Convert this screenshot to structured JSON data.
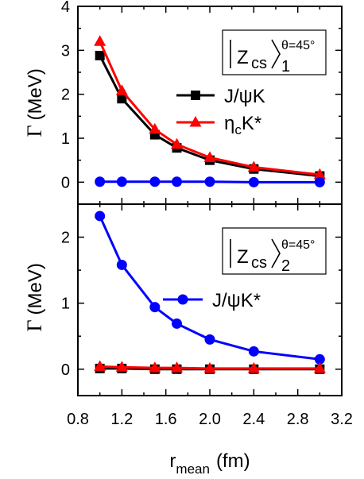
{
  "chart_data": [
    {
      "type": "line",
      "label_title": "Z",
      "label_sub": "cs",
      "label_index": "1",
      "label_angle": "θ=45°",
      "ylabel_symbol": "Γ",
      "ylabel_unit": "(MeV)",
      "xlim": [
        0.8,
        3.2
      ],
      "ylim": [
        -0.5,
        4
      ],
      "yticks": [
        0,
        1,
        2,
        3,
        4
      ],
      "x": [
        1.0,
        1.2,
        1.5,
        1.7,
        2.0,
        2.4,
        3.0
      ],
      "series": [
        {
          "name": "J/ψK",
          "name_parts": [
            "J/ψK",
            "",
            ""
          ],
          "color": "#000000",
          "marker": "square",
          "legend": true,
          "values": [
            2.88,
            1.9,
            1.08,
            0.78,
            0.5,
            0.3,
            0.14
          ]
        },
        {
          "name": "ηcK*",
          "name_parts": [
            "η",
            "c",
            "K*"
          ],
          "color": "#ff0000",
          "marker": "triangle",
          "legend": true,
          "values": [
            3.2,
            2.08,
            1.2,
            0.86,
            0.56,
            0.34,
            0.17
          ]
        },
        {
          "name": "",
          "name_parts": [
            "",
            "",
            ""
          ],
          "color": "#0000ff",
          "marker": "circle",
          "legend": false,
          "values": [
            0.01,
            0.01,
            0.01,
            0.01,
            0.01,
            0.0,
            0.0
          ]
        }
      ]
    },
    {
      "type": "line",
      "label_title": "Z",
      "label_sub": "cs",
      "label_index": "2",
      "label_angle": "θ=45°",
      "ylabel_symbol": "Γ",
      "ylabel_unit": "(MeV)",
      "xlim": [
        0.8,
        3.2
      ],
      "ylim": [
        -0.4,
        2.5
      ],
      "yticks": [
        0,
        1,
        2
      ],
      "xticks": [
        0.8,
        1.2,
        1.6,
        2.0,
        2.4,
        2.8,
        3.2
      ],
      "xtick_labels": [
        "0.8",
        "1.2",
        "1.6",
        "2.0",
        "2.4",
        "2.8",
        "3.2"
      ],
      "xlabel_main": "r",
      "xlabel_sub": "mean",
      "xlabel_unit": "(fm)",
      "x": [
        1.0,
        1.2,
        1.5,
        1.7,
        2.0,
        2.4,
        3.0
      ],
      "series": [
        {
          "name": "J/ψK*",
          "name_parts": [
            "J/ψK*",
            "",
            ""
          ],
          "color": "#0000ff",
          "marker": "circle",
          "legend": true,
          "values": [
            2.32,
            1.58,
            0.94,
            0.69,
            0.45,
            0.27,
            0.15
          ]
        },
        {
          "name": "",
          "name_parts": [
            "",
            "",
            ""
          ],
          "color": "#000000",
          "marker": "square",
          "legend": false,
          "values": [
            0.01,
            0.01,
            0.0,
            0.0,
            0.0,
            0.0,
            0.0
          ]
        },
        {
          "name": "",
          "name_parts": [
            "",
            "",
            ""
          ],
          "color": "#ff0000",
          "marker": "triangle",
          "legend": false,
          "values": [
            0.04,
            0.03,
            0.02,
            0.02,
            0.01,
            0.01,
            0.01
          ]
        }
      ]
    }
  ]
}
